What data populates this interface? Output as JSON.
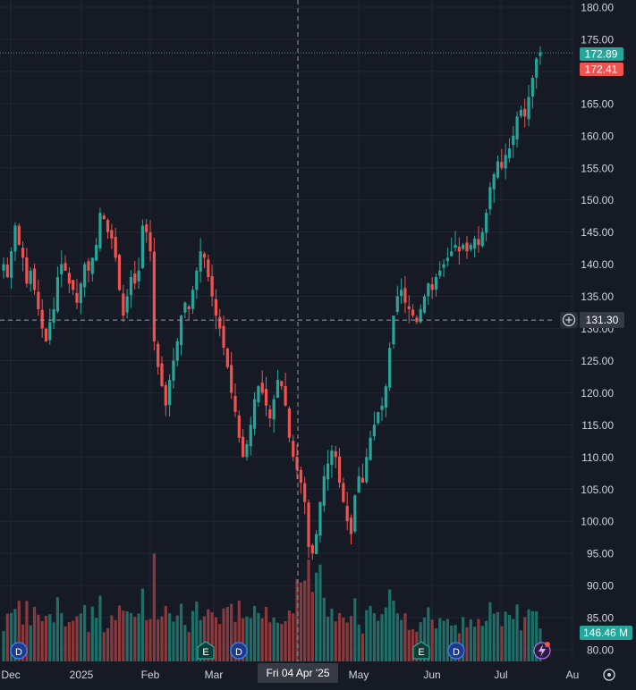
{
  "colors": {
    "background": "#161a25",
    "grid": "#232734",
    "text": "#d1d4dc",
    "up": "#26a69a",
    "down": "#ef5350",
    "volume_up": "#1f6f68",
    "volume_down": "#8a3a3d",
    "crosshair": "#9598a1",
    "label_bg": "#363a45"
  },
  "chart_data": {
    "type": "candlestick",
    "title": "",
    "xlabel": "",
    "ylabel": "",
    "ylim": [
      78,
      181
    ],
    "grid": true,
    "y_ticks": [
      "180.00",
      "175.00",
      "170.00",
      "165.00",
      "160.00",
      "155.00",
      "150.00",
      "145.00",
      "140.00",
      "135.00",
      "130.00",
      "125.00",
      "120.00",
      "115.00",
      "110.00",
      "105.00",
      "100.00",
      "95.00",
      "90.00",
      "85.00",
      "80.00"
    ],
    "x_ticks": [
      "Dec",
      "2025",
      "Feb",
      "Mar",
      "Apr",
      "May",
      "Jun",
      "Jul",
      "Au"
    ],
    "price_labels": {
      "last": "172.89",
      "previous_close": "172.41",
      "volume": "146.46 M"
    },
    "crosshair": {
      "price": 131.3,
      "price_label": "131.30",
      "date_label": "Fri 04 Apr '25"
    },
    "events": [
      {
        "type": "dividend",
        "label": "D",
        "position": "early-dec"
      },
      {
        "type": "earnings",
        "label": "E",
        "position": "late-feb"
      },
      {
        "type": "dividend",
        "label": "D",
        "position": "early-mar"
      },
      {
        "type": "earnings",
        "label": "E",
        "position": "late-may"
      },
      {
        "type": "dividend",
        "label": "D",
        "position": "early-jun"
      }
    ],
    "closes": [
      140,
      138,
      142,
      146,
      143,
      141,
      137,
      139,
      136,
      133,
      130,
      128,
      131,
      133,
      138,
      140,
      139,
      137,
      136,
      134,
      137,
      140,
      139,
      141,
      143,
      148,
      147,
      145,
      144,
      141,
      136,
      132,
      135,
      138,
      137,
      139,
      146,
      145,
      142,
      128,
      124,
      121,
      118,
      122,
      125,
      128,
      132,
      134,
      133,
      136,
      139,
      142,
      141,
      138,
      135,
      132,
      130,
      127,
      124,
      120,
      117,
      113,
      110,
      112,
      115,
      119,
      121,
      120,
      118,
      116,
      119,
      122,
      121,
      118,
      113,
      110,
      108,
      106,
      103,
      96,
      95,
      98,
      103,
      107,
      109,
      111,
      110,
      106,
      103,
      100,
      98,
      104,
      107,
      106,
      110,
      113,
      115,
      117,
      118,
      121,
      127,
      132,
      135,
      136,
      134,
      133,
      132,
      131,
      133,
      135,
      137,
      136,
      138,
      139,
      140,
      141,
      142,
      143,
      142,
      143,
      142,
      143,
      144,
      143,
      145,
      148,
      152,
      154,
      156,
      155,
      157,
      158,
      160,
      163,
      164,
      163,
      166,
      169,
      172,
      173
    ]
  }
}
